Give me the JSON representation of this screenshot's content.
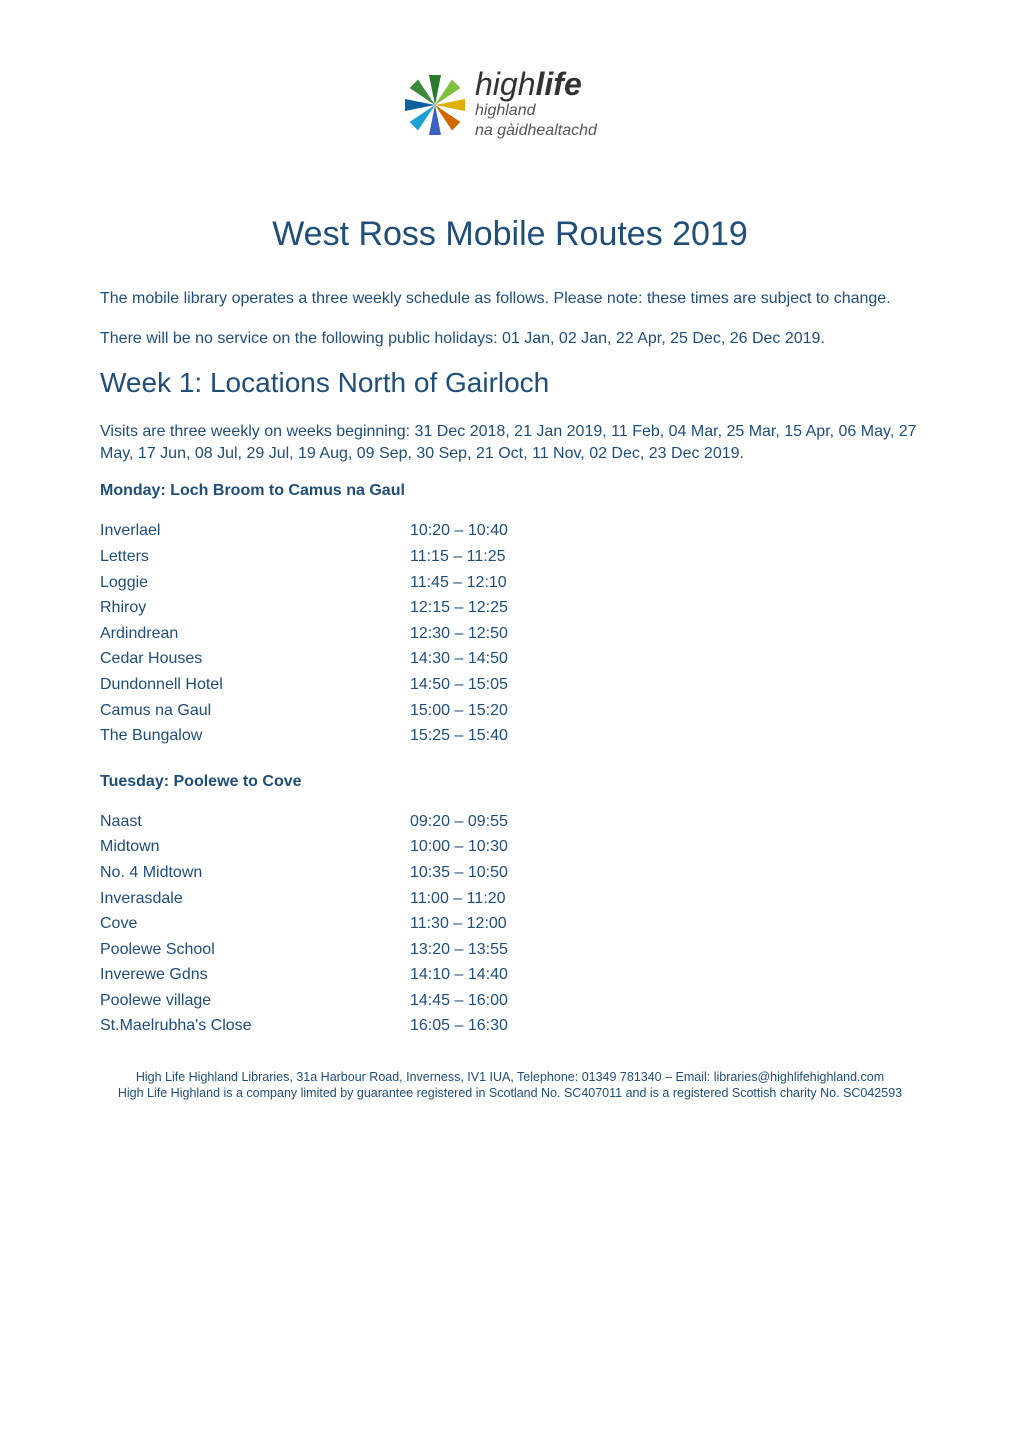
{
  "colors": {
    "text": "#1f4e79",
    "background": "#ffffff",
    "logo_dark": "#333333",
    "logo_sub": "#555555",
    "burst": [
      "#2a7a2a",
      "#7fbf3f",
      "#e0b000",
      "#d06a00",
      "#4060c0",
      "#20a0d0",
      "#1060a0",
      "#3a8a3a"
    ]
  },
  "typography": {
    "body_fontsize": 16,
    "title_fontsize": 34,
    "section_fontsize": 28,
    "subhead_fontsize": 16,
    "footer_fontsize": 12.5,
    "font_family": "Arial"
  },
  "logo": {
    "line1_prefix": "high",
    "line1_bold": "life",
    "line2": "highland",
    "line3": "na gàidhealtachd"
  },
  "title": "West Ross Mobile Routes 2019",
  "intro1": "The mobile library operates a three weekly schedule as follows. Please note: these times are subject to change.",
  "intro2": "There will be no service on the following public holidays: 01 Jan, 02 Jan, 22 Apr, 25 Dec, 26 Dec 2019.",
  "section_heading": "Week 1: Locations North of Gairloch",
  "visits_para": "Visits are three weekly on weeks beginning: 31 Dec 2018, 21 Jan 2019, 11 Feb, 04 Mar, 25 Mar, 15 Apr, 06 May, 27 May, 17 Jun, 08 Jul, 29 Jul, 19 Aug, 09 Sep, 30 Sep, 21 Oct, 11 Nov, 02 Dec, 23 Dec 2019.",
  "monday": {
    "heading": "Monday: Loch Broom to Camus na Gaul",
    "rows": [
      {
        "loc": "Inverlael",
        "time": "10:20 – 10:40"
      },
      {
        "loc": "Letters",
        "time": "11:15 – 11:25"
      },
      {
        "loc": "Loggie",
        "time": "11:45 – 12:10"
      },
      {
        "loc": "Rhiroy",
        "time": "12:15 – 12:25"
      },
      {
        "loc": "Ardindrean",
        "time": "12:30 – 12:50"
      },
      {
        "loc": "Cedar Houses",
        "time": "14:30 – 14:50"
      },
      {
        "loc": "Dundonnell Hotel",
        "time": "14:50 – 15:05"
      },
      {
        "loc": "Camus na Gaul",
        "time": "15:00 – 15:20"
      },
      {
        "loc": "The Bungalow",
        "time": "15:25 – 15:40"
      }
    ]
  },
  "tuesday": {
    "heading": "Tuesday: Poolewe to Cove",
    "rows": [
      {
        "loc": "Naast",
        "time": "09:20 – 09:55"
      },
      {
        "loc": "Midtown",
        "time": "10:00 – 10:30"
      },
      {
        "loc": "No. 4 Midtown",
        "time": "10:35 – 10:50"
      },
      {
        "loc": "Inverasdale",
        "time": "11:00 – 11:20"
      },
      {
        "loc": "Cove",
        "time": "11:30 – 12:00"
      },
      {
        "loc": "Poolewe School",
        "time": "13:20 – 13:55"
      },
      {
        "loc": "Inverewe Gdns",
        "time": "14:10 – 14:40"
      },
      {
        "loc": "Poolewe village",
        "time": "14:45 – 16:00"
      },
      {
        "loc": "St.Maelrubha's Close",
        "time": "16:05 – 16:30"
      }
    ]
  },
  "footer": {
    "line1": "High Life Highland Libraries, 31a Harbour Road, Inverness, IV1 IUA, Telephone: 01349 781340 – Email: libraries@highlifehighland.com",
    "line2": "High Life Highland is a company limited by guarantee registered in Scotland No. SC407011 and is a registered Scottish charity No. SC042593"
  }
}
